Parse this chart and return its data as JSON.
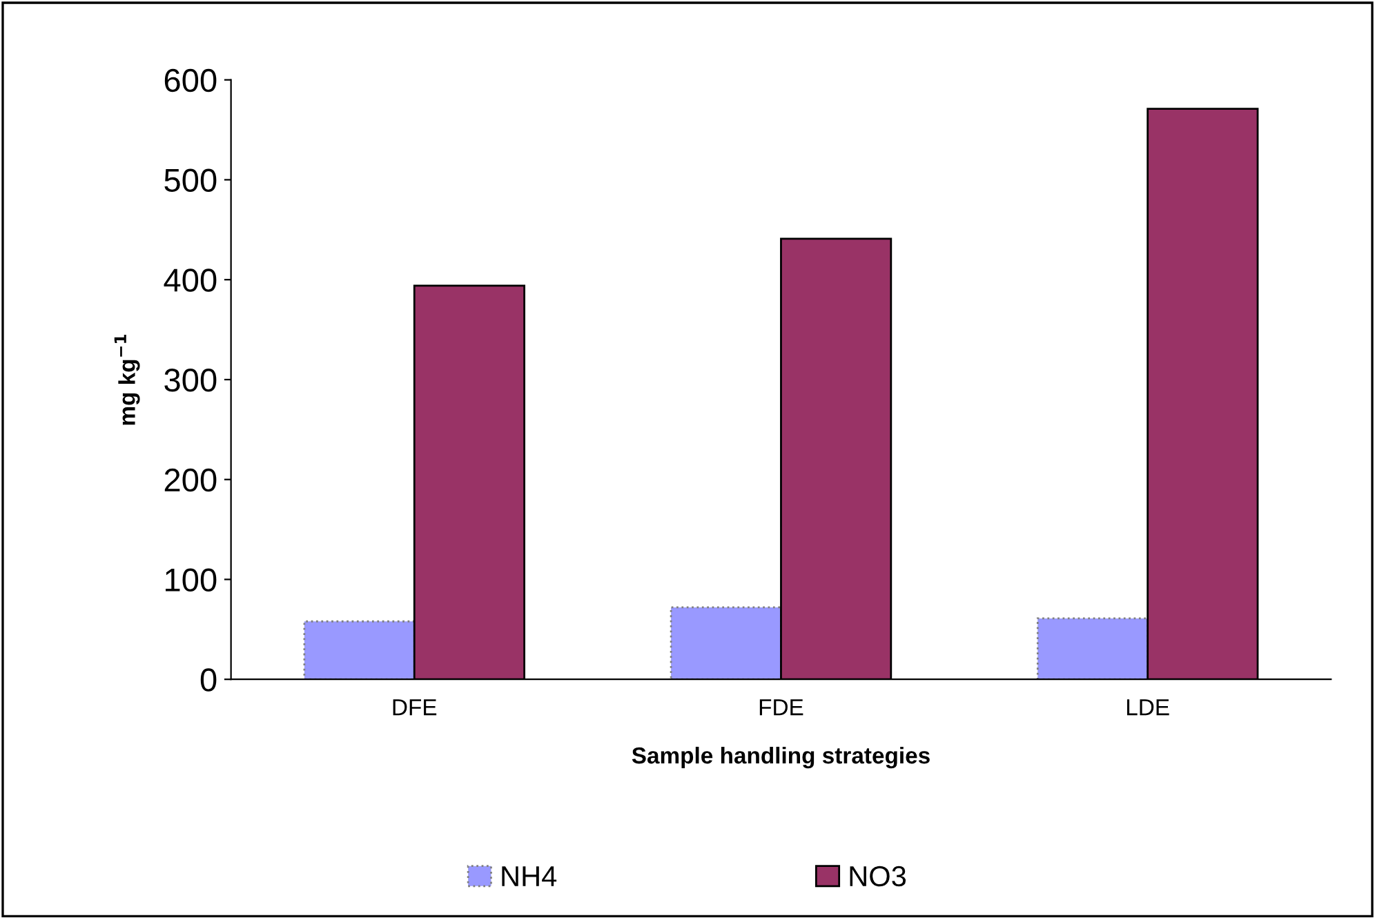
{
  "chart_data": {
    "type": "bar",
    "xlabel": "Sample handling strategies",
    "ylabel": "mg kg$^{−1}$",
    "categories": [
      "DFE",
      "FDE",
      "LDE"
    ],
    "series": [
      {
        "name": "NH4",
        "color": "#9999ff",
        "values": [
          58,
          72,
          61
        ]
      },
      {
        "name": "NO3",
        "color": "#993366",
        "values": [
          394,
          441,
          571
        ]
      }
    ],
    "ylim": [
      0,
      600
    ],
    "yticks": [
      0,
      100,
      200,
      300,
      400,
      500,
      600
    ],
    "grid": false,
    "legend": "bottom"
  }
}
